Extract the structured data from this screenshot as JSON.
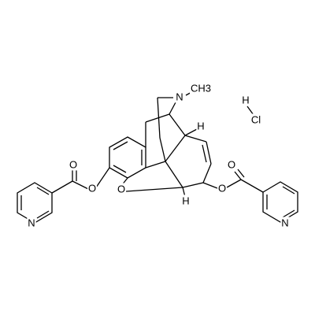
{
  "labels": [
    "N",
    "CH3",
    "H",
    "Cl",
    "O",
    "O",
    "O",
    "O",
    "O",
    "N",
    "N",
    "H",
    "H"
  ]
}
